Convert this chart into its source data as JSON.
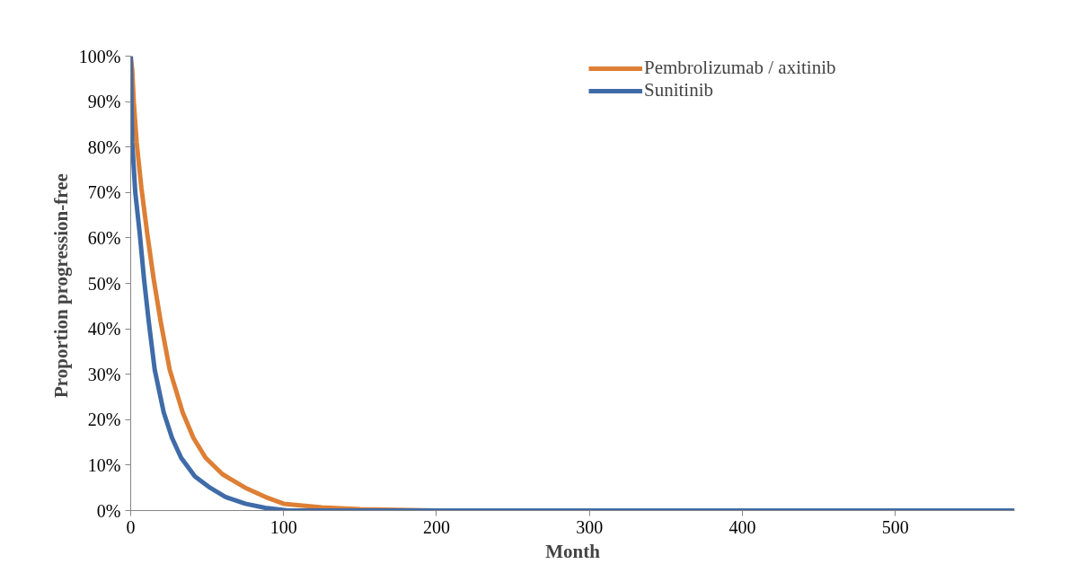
{
  "chart_data": {
    "type": "line",
    "xlabel": "Month",
    "ylabel": "Proportion  progression-free",
    "xlim": [
      0,
      578
    ],
    "ylim": [
      0,
      100
    ],
    "xticks": [
      0,
      100,
      200,
      300,
      400,
      500
    ],
    "yticks": [
      {
        "value": 0,
        "label": "0%"
      },
      {
        "value": 10,
        "label": "10%"
      },
      {
        "value": 20,
        "label": "20%"
      },
      {
        "value": 30,
        "label": "30%"
      },
      {
        "value": 40,
        "label": "40%"
      },
      {
        "value": 50,
        "label": "50%"
      },
      {
        "value": 60,
        "label": "60%"
      },
      {
        "value": 70,
        "label": "70%"
      },
      {
        "value": 80,
        "label": "80%"
      },
      {
        "value": 90,
        "label": "90%"
      },
      {
        "value": 100,
        "label": "100%"
      }
    ],
    "grid": false,
    "legend": "top right",
    "marker": "none",
    "line_style": "solid",
    "series": [
      {
        "name": "Pembrolizumab / axitinib",
        "color": "#dd7f35",
        "x": [
          0,
          1,
          2,
          3.9,
          7,
          10.8,
          15,
          19.6,
          25.5,
          34,
          41,
          49,
          60,
          75,
          88,
          100,
          125,
          150,
          200
        ],
        "values": [
          100,
          97,
          90,
          81,
          71,
          61,
          51,
          41.6,
          31,
          21.6,
          16,
          11.6,
          8,
          5,
          3,
          1.5,
          0.7,
          0.3,
          0
        ]
      },
      {
        "name": "Sunitinib",
        "color": "#3f6ba8",
        "x": [
          0,
          0.5,
          1,
          3,
          5.9,
          8.7,
          11.8,
          15.7,
          21.6,
          27,
          33,
          42,
          52,
          62,
          75,
          88,
          103,
          150,
          200,
          300,
          400,
          500,
          578
        ],
        "values": [
          100,
          90,
          81,
          70,
          61,
          51,
          41.6,
          31,
          21.6,
          16,
          11.6,
          7.5,
          5,
          3,
          1.5,
          0.6,
          0,
          0,
          0,
          0,
          0,
          0,
          0
        ]
      }
    ]
  }
}
